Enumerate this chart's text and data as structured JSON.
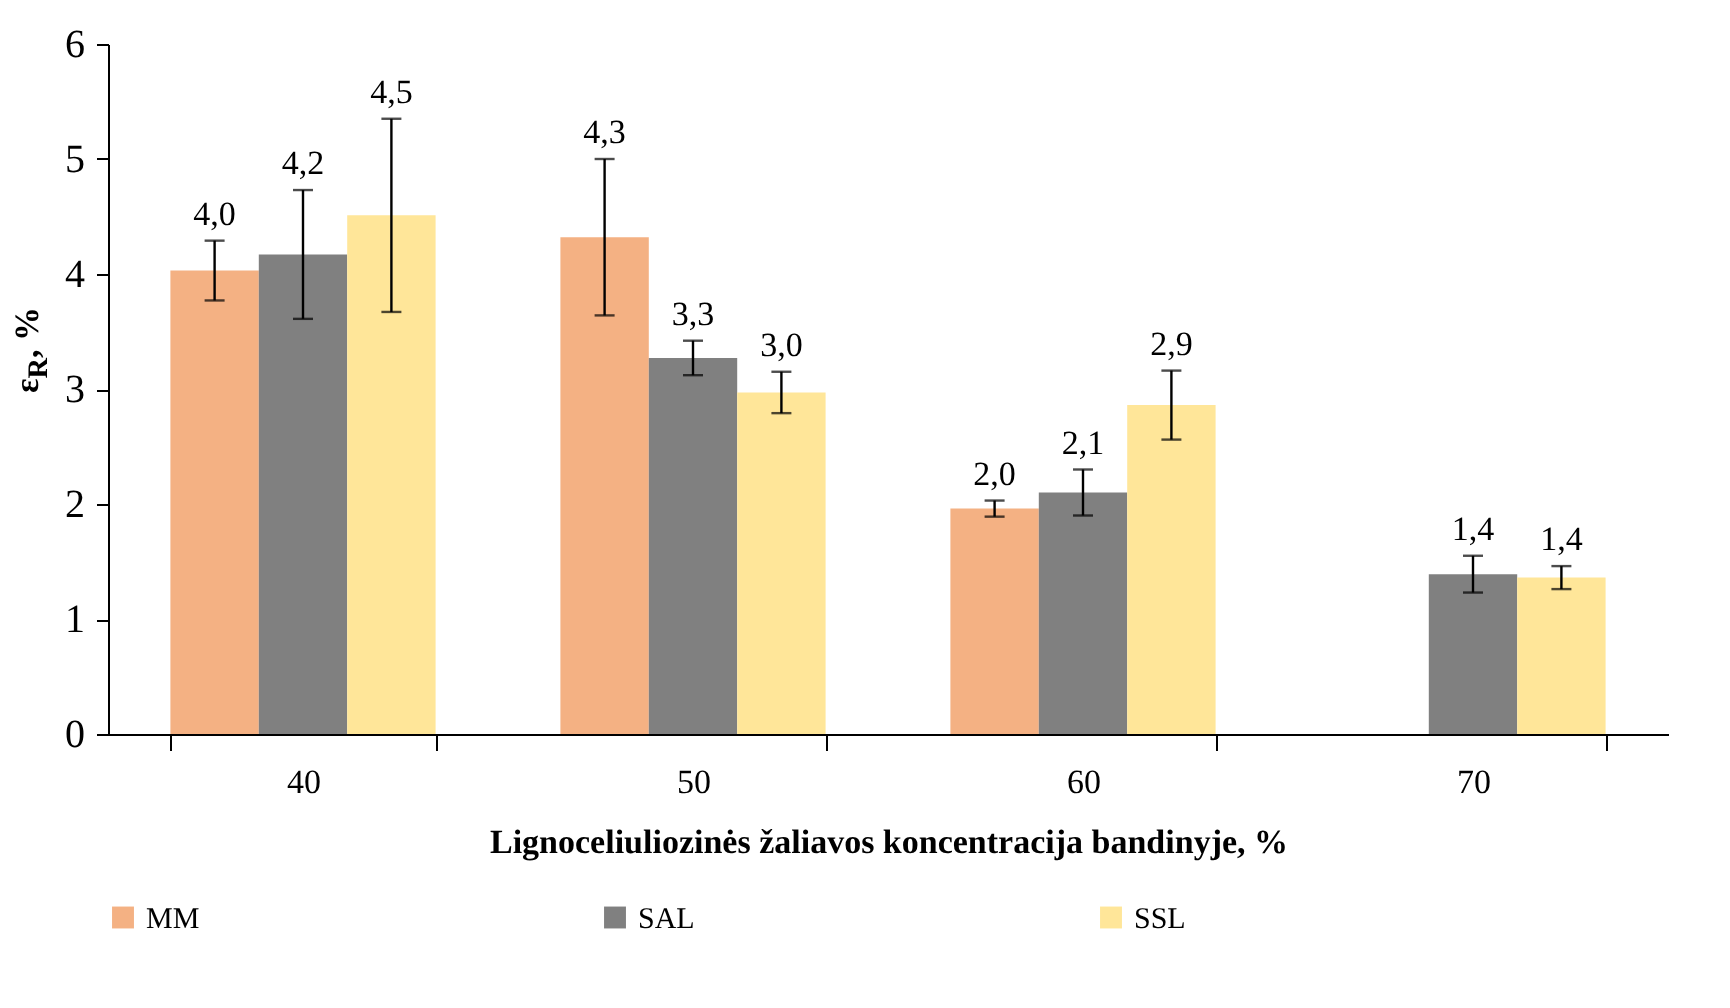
{
  "chart_data": {
    "type": "bar",
    "xlabel": "Lignoceliuliozinės žaliavos koncentracija bandinyje, %",
    "ylabel": "ε$_{R}$, %",
    "categories": [
      "40",
      "50",
      "60",
      "70"
    ],
    "ylim": [
      0,
      6
    ],
    "yticks": [
      0,
      1,
      2,
      3,
      4,
      5,
      6
    ],
    "grid": false,
    "legend": "bottom",
    "series": [
      {
        "name": "MM",
        "color": "#f4b183",
        "values": [
          4.03,
          4.32,
          1.96,
          null
        ],
        "errors": [
          0.26,
          0.68,
          0.07,
          null
        ],
        "value_labels": [
          "4,0",
          "4,3",
          "2,0",
          null
        ]
      },
      {
        "name": "SAL",
        "color": "#808080",
        "values": [
          4.17,
          3.27,
          2.1,
          1.39
        ],
        "errors": [
          0.56,
          0.15,
          0.2,
          0.16
        ],
        "value_labels": [
          "4,2",
          "3,3",
          "2,1",
          "1,4"
        ]
      },
      {
        "name": "SSL",
        "color": "#ffe699",
        "values": [
          4.51,
          2.97,
          2.86,
          1.36
        ],
        "errors": [
          0.84,
          0.18,
          0.3,
          0.1
        ],
        "value_labels": [
          "4,5",
          "3,0",
          "2,9",
          "1,4"
        ]
      }
    ]
  }
}
